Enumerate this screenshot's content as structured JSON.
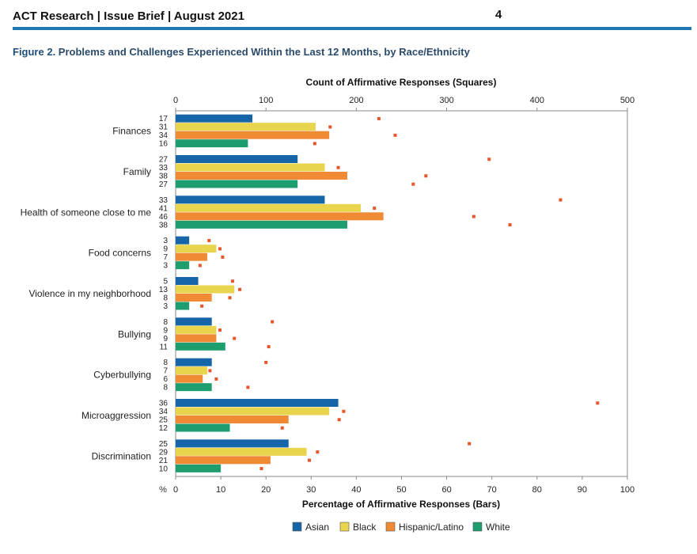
{
  "header": {
    "title": "ACT Research | Issue Brief | August 2021",
    "page_number": "4"
  },
  "figure": {
    "label": "Figure 2",
    "title": ". Problems and Challenges Experienced Within the Last 12 Months, by Race/Ethnicity"
  },
  "chart_data": {
    "type": "bar",
    "orientation": "horizontal",
    "categories": [
      "Finances",
      "Family",
      "Health of someone close to me",
      "Food concerns",
      "Violence in my neighborhood",
      "Bullying",
      "Cyberbullying",
      "Microaggression",
      "Discrimination"
    ],
    "series": [
      {
        "name": "Asian",
        "color": "#1565a8",
        "values": [
          17,
          27,
          33,
          3,
          5,
          8,
          8,
          36,
          25
        ],
        "counts": [
          225,
          347,
          426,
          37,
          63,
          107,
          100,
          467,
          325
        ]
      },
      {
        "name": "Black",
        "color": "#e8d44d",
        "values": [
          31,
          33,
          41,
          9,
          13,
          9,
          7,
          34,
          29
        ],
        "counts": [
          171,
          180,
          220,
          49,
          71,
          49,
          38,
          186,
          157
        ]
      },
      {
        "name": "Hispanic/Latino",
        "color": "#f08a35",
        "values": [
          34,
          38,
          46,
          7,
          8,
          9,
          6,
          25,
          21
        ],
        "counts": [
          243,
          277,
          330,
          52,
          60,
          65,
          45,
          181,
          148
        ]
      },
      {
        "name": "White",
        "color": "#1e9e6e",
        "values": [
          16,
          27,
          38,
          3,
          3,
          11,
          8,
          12,
          10
        ],
        "counts": [
          154,
          263,
          370,
          27,
          29,
          103,
          80,
          118,
          95
        ]
      }
    ],
    "xlabel": "Percentage of Affirmative Responses (Bars)",
    "x_unit_label": "%",
    "xlim": [
      0,
      100
    ],
    "xticks": [
      0,
      10,
      20,
      30,
      40,
      50,
      60,
      70,
      80,
      90,
      100
    ],
    "x2label": "Count of Affirmative Responses (Squares)",
    "x2lim": [
      0,
      500
    ],
    "x2ticks": [
      0,
      100,
      200,
      300,
      400,
      500
    ],
    "count_marker_color": "#e8552a",
    "legend_position": "bottom",
    "grid": false
  }
}
